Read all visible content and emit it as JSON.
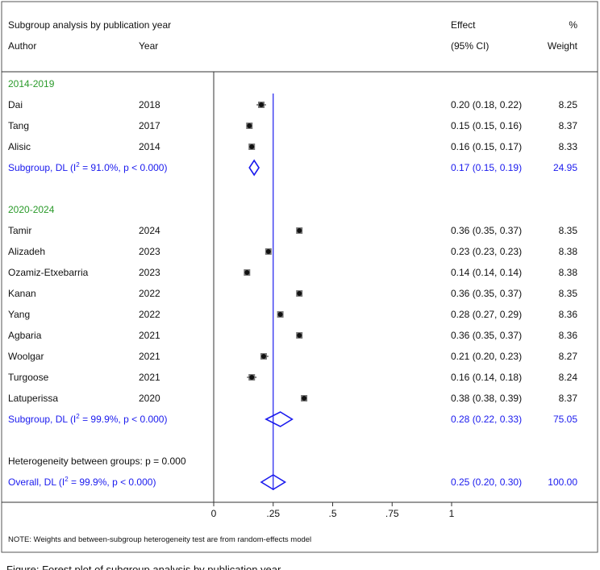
{
  "chart_data": {
    "type": "forest",
    "title": "Subgroup analysis by publication year",
    "columns": {
      "author": "Author",
      "year": "Year",
      "effect_line1": "Effect",
      "effect_line2": "(95% CI)",
      "weight_line1": "%",
      "weight_line2": "Weight"
    },
    "colors": {
      "subgroup_label": "#2a9a2a",
      "summary": "#1a1aee",
      "null_line": "#1a1aee",
      "text": "#111111"
    },
    "x_axis": {
      "min": 0,
      "max": 1,
      "ticks": [
        0,
        0.25,
        0.5,
        0.75,
        1
      ],
      "tick_labels": [
        "0",
        ".25",
        ".5",
        ".75",
        "1"
      ]
    },
    "groups": [
      {
        "label": "2014-2019",
        "studies": [
          {
            "author": "Dai",
            "year": "2018",
            "effect": 0.2,
            "lo": 0.18,
            "hi": 0.22,
            "effect_text": "0.20 (0.18, 0.22)",
            "weight": "8.25"
          },
          {
            "author": "Tang",
            "year": "2017",
            "effect": 0.15,
            "lo": 0.15,
            "hi": 0.16,
            "effect_text": "0.15 (0.15, 0.16)",
            "weight": "8.37"
          },
          {
            "author": "Alisic",
            "year": "2014",
            "effect": 0.16,
            "lo": 0.15,
            "hi": 0.17,
            "effect_text": "0.16 (0.15, 0.17)",
            "weight": "8.33"
          }
        ],
        "summary": {
          "label_prefix": "Subgroup, DL (I",
          "sup": "2",
          "label_suffix": " = 91.0%, p < 0.000)",
          "effect": 0.17,
          "lo": 0.15,
          "hi": 0.19,
          "effect_text": "0.17 (0.15, 0.19)",
          "weight": "24.95"
        }
      },
      {
        "label": "2020-2024",
        "studies": [
          {
            "author": "Tamir",
            "year": "2024",
            "effect": 0.36,
            "lo": 0.35,
            "hi": 0.37,
            "effect_text": "0.36 (0.35, 0.37)",
            "weight": "8.35"
          },
          {
            "author": "Alizadeh",
            "year": "2023",
            "effect": 0.23,
            "lo": 0.23,
            "hi": 0.23,
            "effect_text": "0.23 (0.23, 0.23)",
            "weight": "8.38"
          },
          {
            "author": "Ozamiz-Etxebarria",
            "year": "2023",
            "effect": 0.14,
            "lo": 0.14,
            "hi": 0.14,
            "effect_text": "0.14 (0.14, 0.14)",
            "weight": "8.38"
          },
          {
            "author": "Kanan",
            "year": "2022",
            "effect": 0.36,
            "lo": 0.35,
            "hi": 0.37,
            "effect_text": "0.36 (0.35, 0.37)",
            "weight": "8.35"
          },
          {
            "author": "Yang",
            "year": "2022",
            "effect": 0.28,
            "lo": 0.27,
            "hi": 0.29,
            "effect_text": "0.28 (0.27, 0.29)",
            "weight": "8.36"
          },
          {
            "author": "Agbaria",
            "year": "2021",
            "effect": 0.36,
            "lo": 0.35,
            "hi": 0.37,
            "effect_text": "0.36 (0.35, 0.37)",
            "weight": "8.36"
          },
          {
            "author": "Woolgar",
            "year": "2021",
            "effect": 0.21,
            "lo": 0.2,
            "hi": 0.23,
            "effect_text": "0.21 (0.20, 0.23)",
            "weight": "8.27"
          },
          {
            "author": "Turgoose",
            "year": "2021",
            "effect": 0.16,
            "lo": 0.14,
            "hi": 0.18,
            "effect_text": "0.16 (0.14, 0.18)",
            "weight": "8.24"
          },
          {
            "author": "Latuperissa",
            "year": "2020",
            "effect": 0.38,
            "lo": 0.38,
            "hi": 0.39,
            "effect_text": "0.38 (0.38, 0.39)",
            "weight": "8.37"
          }
        ],
        "summary": {
          "label_prefix": "Subgroup, DL (I",
          "sup": "2",
          "label_suffix": " = 99.9%, p < 0.000)",
          "effect": 0.28,
          "lo": 0.22,
          "hi": 0.33,
          "effect_text": "0.28 (0.22, 0.33)",
          "weight": "75.05"
        }
      }
    ],
    "heterogeneity": "Heterogeneity between groups: p = 0.000",
    "overall": {
      "label_prefix": "Overall, DL (I",
      "sup": "2",
      "label_suffix": " = 99.9%, p < 0.000)",
      "effect": 0.25,
      "lo": 0.2,
      "hi": 0.3,
      "effect_text": "0.25 (0.20, 0.30)",
      "weight": "100.00"
    },
    "note": "NOTE: Weights and between-subgroup heterogeneity test are from random-effects model",
    "caption": "Figure: Forest plot of subgroup analysis by publication year"
  }
}
